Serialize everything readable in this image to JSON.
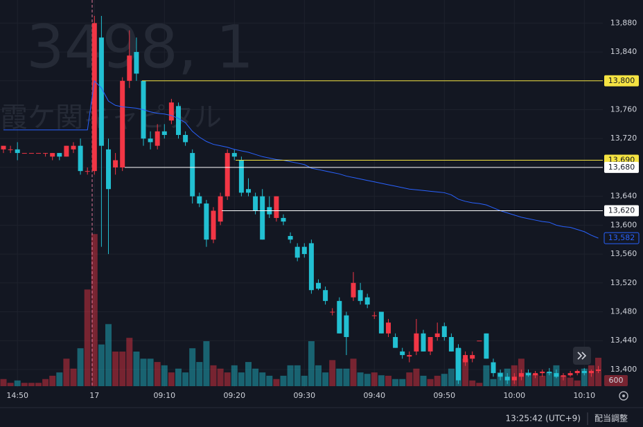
{
  "chart_data": {
    "type": "candlestick",
    "watermark": {
      "symbol": "3498, 1",
      "name": "霞ケ関キャピタル"
    },
    "x": [
      null,
      null,
      "14:50",
      null,
      null,
      null,
      null,
      null,
      null,
      null,
      null,
      null,
      null,
      "17",
      null,
      null,
      null,
      null,
      null,
      null,
      null,
      null,
      null,
      "09:10",
      null,
      null,
      null,
      null,
      null,
      null,
      null,
      null,
      null,
      "09:20",
      null,
      null,
      null,
      null,
      null,
      null,
      null,
      null,
      null,
      "09:30",
      null,
      null,
      null,
      null,
      null,
      null,
      null,
      null,
      null,
      "09:40",
      null,
      null,
      null,
      null,
      null,
      null,
      null,
      null,
      null,
      "09:50",
      null,
      null,
      null,
      null,
      null,
      null,
      null,
      null,
      null,
      "10:00",
      null,
      null,
      null,
      null,
      null,
      null,
      null,
      null,
      null,
      "10:10",
      null,
      null
    ],
    "open": [
      13705,
      13705,
      13705,
      13700,
      13700,
      13700,
      13700,
      13695,
      13700,
      13695,
      13705,
      13710,
      13675,
      13675,
      13860,
      13705,
      13680,
      13680,
      13800,
      13840,
      13800,
      13720,
      13710,
      13730,
      13745,
      13765,
      13725,
      13700,
      13640,
      13630,
      13580,
      13605,
      13640,
      13700,
      13690,
      13650,
      13640,
      13640,
      13625,
      13610,
      13610,
      13585,
      13570,
      13570,
      13575,
      13520,
      13510,
      13480,
      13495,
      13475,
      13500,
      13510,
      13500,
      13475,
      13480,
      13450,
      13445,
      13425,
      13418,
      13425,
      13450,
      13425,
      13445,
      13460,
      13445,
      13430,
      13410,
      13415,
      13440,
      13450,
      13410,
      13395,
      13390,
      13385,
      13390,
      13395,
      13392,
      13395,
      13397,
      13395,
      13390,
      13392,
      13395,
      13398,
      13395,
      13398
    ],
    "high": [
      13710,
      13710,
      13715,
      13700,
      13700,
      13700,
      13700,
      13700,
      13700,
      13710,
      13715,
      13720,
      13680,
      13890,
      13890,
      13720,
      13700,
      13805,
      13870,
      13860,
      13800,
      13730,
      13740,
      13740,
      13775,
      13770,
      13730,
      13705,
      13645,
      13635,
      13625,
      13645,
      13705,
      13705,
      13695,
      13665,
      13645,
      13650,
      13640,
      13640,
      13615,
      13590,
      13575,
      13575,
      13580,
      13525,
      13515,
      13485,
      13500,
      13480,
      13535,
      13520,
      13505,
      13480,
      13480,
      13470,
      13450,
      13430,
      13425,
      13470,
      13455,
      13445,
      13465,
      13465,
      13450,
      13435,
      13425,
      13425,
      13440,
      13450,
      13415,
      13400,
      13395,
      13395,
      13400,
      13400,
      13398,
      13400,
      13402,
      13400,
      13395,
      13398,
      13400,
      13402,
      13400,
      13405
    ],
    "low": [
      13700,
      13700,
      13690,
      13700,
      13700,
      13700,
      13695,
      13690,
      13690,
      13695,
      13700,
      13670,
      13670,
      13670,
      13570,
      13560,
      13670,
      13675,
      13790,
      13800,
      13710,
      13705,
      13705,
      13720,
      13740,
      13720,
      13710,
      13630,
      13625,
      13570,
      13575,
      13600,
      13635,
      13690,
      13640,
      13640,
      13615,
      13580,
      13610,
      13605,
      13600,
      13575,
      13550,
      13555,
      13505,
      13510,
      13490,
      13475,
      13450,
      13420,
      13495,
      13490,
      13485,
      13470,
      13450,
      13445,
      13430,
      13415,
      13410,
      13420,
      13425,
      13420,
      13440,
      13440,
      13425,
      13380,
      13405,
      13410,
      13440,
      13415,
      13390,
      13385,
      13380,
      13380,
      13385,
      13390,
      13388,
      13390,
      13392,
      13388,
      13385,
      13390,
      13392,
      13392,
      13390,
      13395
    ],
    "close": [
      13710,
      13705,
      13700,
      13700,
      13700,
      13700,
      13700,
      13700,
      13695,
      13710,
      13710,
      13675,
      13675,
      13880,
      13710,
      13650,
      13690,
      13800,
      13835,
      13810,
      13720,
      13715,
      13730,
      13725,
      13770,
      13725,
      13715,
      13640,
      13630,
      13580,
      13620,
      13640,
      13700,
      13695,
      13645,
      13645,
      13620,
      13580,
      13615,
      13640,
      13605,
      13580,
      13555,
      13560,
      13510,
      13512,
      13495,
      13480,
      13450,
      13445,
      13520,
      13495,
      13490,
      13475,
      13450,
      13465,
      13430,
      13420,
      13420,
      13450,
      13425,
      13445,
      13450,
      13445,
      13425,
      13385,
      13420,
      13420,
      13440,
      13415,
      13395,
      13390,
      13385,
      13390,
      13395,
      13392,
      13395,
      13397,
      13395,
      13390,
      13392,
      13395,
      13398,
      13395,
      13398,
      13400
    ],
    "volume": [
      150,
      70,
      120,
      70,
      70,
      70,
      150,
      220,
      290,
      580,
      370,
      800,
      2040,
      3210,
      880,
      1310,
      730,
      730,
      1020,
      730,
      580,
      580,
      510,
      440,
      290,
      370,
      290,
      800,
      510,
      950,
      440,
      370,
      290,
      440,
      290,
      510,
      370,
      290,
      220,
      150,
      220,
      440,
      440,
      220,
      950,
      440,
      290,
      550,
      370,
      370,
      580,
      290,
      260,
      290,
      230,
      220,
      150,
      150,
      290,
      370,
      220,
      150,
      220,
      260,
      370,
      800,
      580,
      120,
      70,
      440,
      150,
      290,
      370,
      440,
      580,
      290,
      250,
      220,
      290,
      440,
      220,
      180,
      120,
      370,
      440,
      600
    ],
    "up_color": "#f23645",
    "down_color": "#22c0d2",
    "ylim": [
      13375,
      13912
    ],
    "yticks": [
      {
        "value": 13400,
        "label": "13,400"
      },
      {
        "value": 13440,
        "label": "13,440"
      },
      {
        "value": 13480,
        "label": "13,480"
      },
      {
        "value": 13520,
        "label": "13,520"
      },
      {
        "value": 13560,
        "label": "13,560"
      },
      {
        "value": 13600,
        "label": "13,600"
      },
      {
        "value": 13640,
        "label": "13,640"
      },
      {
        "value": 13680,
        "label": "13,680"
      },
      {
        "value": 13720,
        "label": "13,720"
      },
      {
        "value": 13760,
        "label": "13,760"
      },
      {
        "value": 13800,
        "label": "13,800"
      },
      {
        "value": 13840,
        "label": "13,840"
      },
      {
        "value": 13880,
        "label": "13,880"
      }
    ],
    "vlim": [
      0,
      8150
    ],
    "volume_last": 600,
    "vwap": {
      "color": "#2962ff",
      "values": [
        13732,
        13732,
        13732,
        13732,
        13732,
        13732,
        13732,
        13732,
        13732,
        13732,
        13732,
        13732,
        13732,
        13800,
        13790,
        13772,
        13766,
        13764,
        13763,
        13762,
        13760,
        13757,
        13755,
        13754,
        13752,
        13748,
        13742,
        13730,
        13722,
        13716,
        13712,
        13710,
        13708,
        13705,
        13703,
        13701,
        13698,
        13695,
        13693,
        13691,
        13690,
        13688,
        13686,
        13684,
        13679,
        13677,
        13675,
        13673,
        13671,
        13668,
        13666,
        13664,
        13662,
        13660,
        13658,
        13656,
        13654,
        13652,
        13650,
        13649,
        13648,
        13647,
        13646,
        13645,
        13642,
        13636,
        13633,
        13631,
        13630,
        13628,
        13624,
        13620,
        13617,
        13614,
        13611,
        13609,
        13607,
        13605,
        13604,
        13600,
        13598,
        13597,
        13594,
        13591,
        13586,
        13582
      ],
      "last": {
        "value": 13582,
        "label": "13,582"
      }
    },
    "price_lines": [
      {
        "value": 13800,
        "label": "13,800",
        "color": "#f5e342"
      },
      {
        "value": 13690,
        "label": "13,690",
        "color": "#f5e342"
      },
      {
        "value": 13680,
        "label": "13,680",
        "color": "#ffffff"
      },
      {
        "value": 13620,
        "label": "13,620",
        "color": "#ffffff"
      }
    ],
    "grid": true
  },
  "status_bar": {
    "time": "13:25:42 (UTC+9)",
    "adjust": "配当調整"
  }
}
